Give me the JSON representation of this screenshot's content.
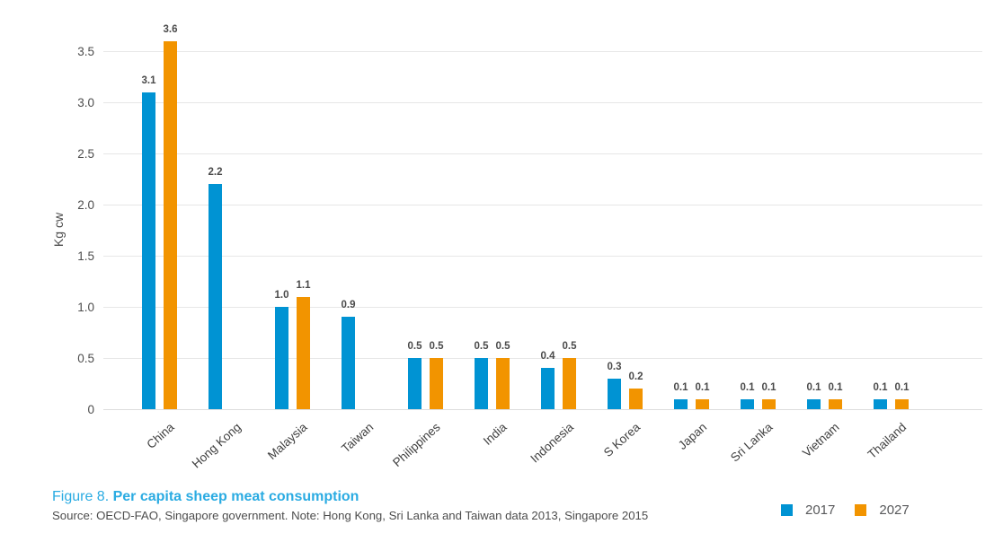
{
  "chart_data": {
    "type": "bar",
    "categories": [
      "China",
      "Hong Kong",
      "Malaysia",
      "Taiwan",
      "Philippines",
      "India",
      "Indonesia",
      "S Korea",
      "Japan",
      "Sri Lanka",
      "Vietnam",
      "Thailand"
    ],
    "series": [
      {
        "name": "2017",
        "color": "#0093d3",
        "values": [
          3.1,
          2.2,
          1.0,
          0.9,
          0.5,
          0.5,
          0.4,
          0.3,
          0.1,
          0.1,
          0.1,
          0.1
        ]
      },
      {
        "name": "2027",
        "color": "#f29400",
        "values": [
          3.6,
          null,
          1.1,
          null,
          0.5,
          0.5,
          0.5,
          0.2,
          0.1,
          0.1,
          0.1,
          0.1
        ]
      }
    ],
    "xlabel": "",
    "ylabel": "Kg cw",
    "ylim": [
      0,
      3.5
    ],
    "yticks": [
      "0",
      "0.5",
      "1.0",
      "1.5",
      "2.0",
      "2.5",
      "3.0",
      "3.5"
    ],
    "grid": true,
    "value_labels_decimals": 1,
    "legend_position": "bottom-right"
  },
  "caption": {
    "prefix": "Figure 8. ",
    "title": "Per capita sheep meat consumption"
  },
  "source": "Source: OECD-FAO, Singapore government. Note: Hong Kong, Sri Lanka and Taiwan data 2013, Singapore 2015",
  "colors": {
    "series_2017": "#0093d3",
    "series_2027": "#f29400",
    "caption_blue": "#2aabe2",
    "gridline": "#e7e7e7",
    "text_gray": "#4d4d4d"
  }
}
